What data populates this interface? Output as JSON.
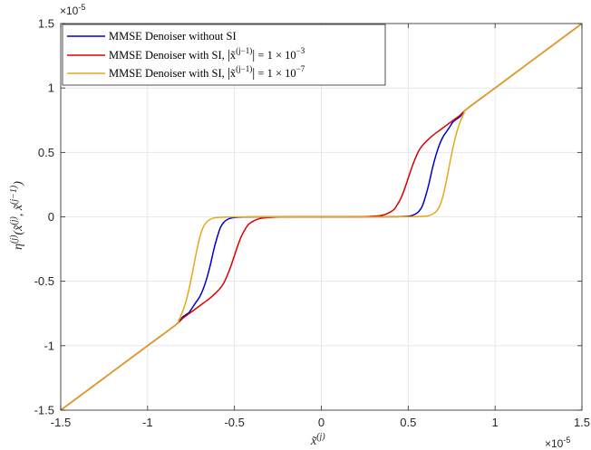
{
  "chart_data": {
    "type": "line",
    "xlabel": "x̃^(j)",
    "ylabel": "η^(j)(x̃^(j), x̃^(j−1))",
    "x_exponent": "×10^-5",
    "y_exponent": "×10^-5",
    "xlim": [
      -1.5,
      1.5
    ],
    "ylim": [
      -1.5,
      1.5
    ],
    "xticks": [
      "-1.5",
      "-1",
      "-0.5",
      "0",
      "0.5",
      "1",
      "1.5"
    ],
    "yticks": [
      "-1.5",
      "-1",
      "-0.5",
      "0",
      "0.5",
      "1",
      "1.5"
    ],
    "grid": true,
    "legend_position": "top-left",
    "units_note": "values in units of 10^-5",
    "series": [
      {
        "name": "MMSE Denoiser without SI",
        "color": "#0000cc",
        "x": [
          -1.5,
          -1.2,
          -1.0,
          -0.84,
          -0.8,
          -0.78,
          -0.76,
          -0.74,
          -0.72,
          -0.7,
          -0.68,
          -0.66,
          -0.64,
          -0.62,
          -0.6,
          -0.58,
          -0.56,
          -0.54,
          -0.52,
          -0.5,
          -0.45,
          -0.4,
          -0.3,
          -0.2,
          -0.1,
          0,
          0.1,
          0.2,
          0.3,
          0.4,
          0.45,
          0.5,
          0.52,
          0.54,
          0.56,
          0.58,
          0.6,
          0.62,
          0.64,
          0.66,
          0.68,
          0.7,
          0.72,
          0.74,
          0.76,
          0.78,
          0.8,
          0.84,
          1.0,
          1.2,
          1.5
        ],
        "y": [
          -1.5,
          -1.2,
          -1.0,
          -0.84,
          -0.78,
          -0.76,
          -0.74,
          -0.7,
          -0.66,
          -0.62,
          -0.56,
          -0.48,
          -0.38,
          -0.26,
          -0.16,
          -0.08,
          -0.04,
          -0.02,
          -0.01,
          -0.005,
          -0.002,
          -0.001,
          0,
          0,
          0,
          0,
          0,
          0,
          0,
          0.001,
          0.002,
          0.005,
          0.01,
          0.02,
          0.04,
          0.08,
          0.16,
          0.26,
          0.38,
          0.48,
          0.56,
          0.62,
          0.66,
          0.7,
          0.74,
          0.76,
          0.78,
          0.84,
          1.0,
          1.2,
          1.5
        ]
      },
      {
        "name": "MMSE Denoiser with SI, |x̃^(j−1)| = 1 × 10^−3",
        "color": "#dd0000",
        "x": [
          -1.5,
          -1.2,
          -1.0,
          -0.84,
          -0.8,
          -0.76,
          -0.72,
          -0.68,
          -0.64,
          -0.6,
          -0.58,
          -0.56,
          -0.54,
          -0.52,
          -0.5,
          -0.48,
          -0.46,
          -0.44,
          -0.42,
          -0.4,
          -0.37,
          -0.34,
          -0.3,
          -0.25,
          -0.2,
          -0.1,
          0,
          0.1,
          0.2,
          0.25,
          0.3,
          0.34,
          0.37,
          0.4,
          0.42,
          0.44,
          0.46,
          0.48,
          0.5,
          0.52,
          0.54,
          0.56,
          0.58,
          0.6,
          0.64,
          0.68,
          0.72,
          0.76,
          0.8,
          0.84,
          1.0,
          1.2,
          1.5
        ],
        "y": [
          -1.5,
          -1.2,
          -1.0,
          -0.84,
          -0.79,
          -0.75,
          -0.71,
          -0.67,
          -0.63,
          -0.58,
          -0.55,
          -0.51,
          -0.45,
          -0.38,
          -0.3,
          -0.22,
          -0.15,
          -0.1,
          -0.06,
          -0.04,
          -0.02,
          -0.01,
          -0.005,
          -0.002,
          -0.001,
          0,
          0,
          0,
          0.001,
          0.002,
          0.005,
          0.01,
          0.02,
          0.04,
          0.06,
          0.1,
          0.15,
          0.22,
          0.3,
          0.38,
          0.45,
          0.51,
          0.55,
          0.58,
          0.63,
          0.67,
          0.71,
          0.75,
          0.79,
          0.84,
          1.0,
          1.2,
          1.5
        ]
      },
      {
        "name": "MMSE Denoiser with SI, |x̃^(j−1)| = 1 × 10^−7",
        "color": "#e6a817",
        "x": [
          -1.5,
          -1.2,
          -1.0,
          -0.84,
          -0.82,
          -0.8,
          -0.78,
          -0.76,
          -0.74,
          -0.72,
          -0.7,
          -0.68,
          -0.66,
          -0.64,
          -0.62,
          -0.6,
          -0.55,
          -0.5,
          -0.4,
          -0.2,
          0,
          0.2,
          0.4,
          0.5,
          0.55,
          0.6,
          0.62,
          0.64,
          0.66,
          0.68,
          0.7,
          0.72,
          0.74,
          0.76,
          0.78,
          0.8,
          0.82,
          0.84,
          1.0,
          1.2,
          1.5
        ],
        "y": [
          -1.5,
          -1.2,
          -1.0,
          -0.84,
          -0.8,
          -0.74,
          -0.66,
          -0.55,
          -0.42,
          -0.28,
          -0.16,
          -0.08,
          -0.04,
          -0.02,
          -0.01,
          -0.005,
          -0.002,
          -0.001,
          0,
          0,
          0,
          0,
          0,
          0.001,
          0.002,
          0.005,
          0.01,
          0.02,
          0.04,
          0.08,
          0.16,
          0.28,
          0.42,
          0.55,
          0.66,
          0.74,
          0.8,
          0.84,
          1.0,
          1.2,
          1.5
        ]
      }
    ]
  }
}
